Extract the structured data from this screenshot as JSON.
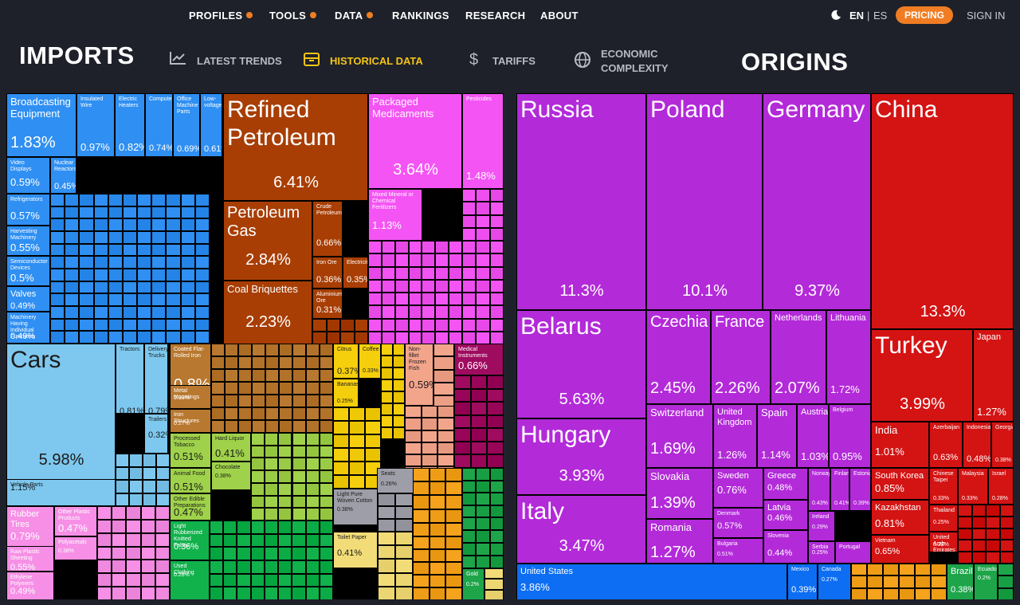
{
  "nav": {
    "items": [
      {
        "label": "PROFILES",
        "dot": true
      },
      {
        "label": "TOOLS",
        "dot": true
      },
      {
        "label": "DATA",
        "dot": true
      },
      {
        "label": "RANKINGS",
        "dot": false
      },
      {
        "label": "RESEARCH",
        "dot": false
      },
      {
        "label": "ABOUT",
        "dot": false
      }
    ],
    "lang_en": "EN",
    "lang_sep": "|",
    "lang_es": "ES",
    "pricing": "PRICING",
    "signin": "SIGN IN"
  },
  "header": {
    "left_title": "IMPORTS",
    "right_title": "ORIGINS",
    "tabs": [
      {
        "label": "LATEST TRENDS",
        "icon": "trend-chart-icon",
        "active": false
      },
      {
        "label": "HISTORICAL DATA",
        "icon": "historical-box-icon",
        "active": true
      },
      {
        "label": "TARIFFS",
        "icon": "dollar-icon",
        "active": false
      },
      {
        "label_line1": "ECONOMIC",
        "label_line2": "COMPLEXITY",
        "icon": "globe-icon",
        "active": false
      }
    ]
  },
  "colors": {
    "machinery": "#2f8ff2",
    "transport": "#7ec8ef",
    "minerals": "#a83e04",
    "chemicals": "#f454f4",
    "metals": "#b8782f",
    "food": "#9fd24a",
    "plastics": "#f68fe5",
    "textiles": "#11b14c",
    "animal": "#f3a58c",
    "vegetable": "#f5cf0c",
    "instruments": "#9e0b5f",
    "stone": "#9e9ea8",
    "paper": "#f1dc78",
    "europe": "#b32ad9",
    "asia": "#d41313",
    "namerica": "#0d6ef3",
    "samerica": "#1ea54a",
    "misc": "#f5a21c"
  },
  "imports": [
    {
      "name": "Broadcasting Equipment",
      "value": "1.83%"
    },
    {
      "name": "Insulated Wire",
      "value": "0.97%"
    },
    {
      "name": "Electric Heaters",
      "value": "0.82%"
    },
    {
      "name": "Computers",
      "value": "0.74%"
    },
    {
      "name": "Office Machine Parts",
      "value": "0.69%"
    },
    {
      "name": "Low-voltage",
      "value": "0.61%"
    },
    {
      "name": "Video Displays",
      "value": "0.59%"
    },
    {
      "name": "Nuclear Reactors",
      "value": "0.45%"
    },
    {
      "name": "Refrigerators",
      "value": "0.57%"
    },
    {
      "name": "Harvesting Machinery",
      "value": "0.55%"
    },
    {
      "name": "Semiconductor Devices",
      "value": "0.5%"
    },
    {
      "name": "Valves",
      "value": "0.49%"
    },
    {
      "name": "Machinery Having Individual Functions",
      "value": "0.49%"
    },
    {
      "name": "Refined Petroleum",
      "value": "6.41%"
    },
    {
      "name": "Petroleum Gas",
      "value": "2.84%"
    },
    {
      "name": "Crude Petroleum",
      "value": "0.66%"
    },
    {
      "name": "Iron Ore",
      "value": "0.36%"
    },
    {
      "name": "Electricity",
      "value": "0.35%"
    },
    {
      "name": "Coal Briquettes",
      "value": "2.23%"
    },
    {
      "name": "Aluminium Ore",
      "value": "0.31%"
    },
    {
      "name": "Packaged Medicaments",
      "value": "3.64%"
    },
    {
      "name": "Pesticides",
      "value": "1.48%"
    },
    {
      "name": "Mixed Mineral or Chemical Fertilizers",
      "value": "1.13%"
    },
    {
      "name": "Cars",
      "value": "5.98%"
    },
    {
      "name": "Vehicle Parts",
      "value": "1.15%"
    },
    {
      "name": "Tractors",
      "value": "0.81%"
    },
    {
      "name": "Delivery Trucks",
      "value": "0.79%"
    },
    {
      "name": "Trailers",
      "value": "0.32%"
    },
    {
      "name": "Coated Flat-Rolled Iron",
      "value": "0.8%"
    },
    {
      "name": "Metal Mountings",
      "value": "0.33%"
    },
    {
      "name": "Iron Structures",
      "value": "0.27%"
    },
    {
      "name": "Citrus",
      "value": "0.37%"
    },
    {
      "name": "Coffee",
      "value": "0.33%"
    },
    {
      "name": "Bananas",
      "value": "0.25%"
    },
    {
      "name": "Non-fillet Frozen Fish",
      "value": "0.59%"
    },
    {
      "name": "Medical Instruments",
      "value": "0.66%"
    },
    {
      "name": "Processed Tobacco",
      "value": "0.51%"
    },
    {
      "name": "Hard Liquor",
      "value": "0.41%"
    },
    {
      "name": "Animal Food",
      "value": "0.51%"
    },
    {
      "name": "Chocolate",
      "value": "0.38%"
    },
    {
      "name": "Other Edible Preparations",
      "value": "0.47%"
    },
    {
      "name": "Rubber Tires",
      "value": "0.79%"
    },
    {
      "name": "Other Plastic Products",
      "value": "0.47%"
    },
    {
      "name": "Raw Plastic Sheeting",
      "value": "0.55%"
    },
    {
      "name": "Polyacetals",
      "value": "0.38%"
    },
    {
      "name": "Ethylene Polymers",
      "value": "0.49%"
    },
    {
      "name": "Light Rubberized Knitted Fabric",
      "value": "0.36%"
    },
    {
      "name": "Used Clothing",
      "value": "0.28%"
    },
    {
      "name": "Seats",
      "value": "0.26%"
    },
    {
      "name": "Toilet Paper",
      "value": "0.41%"
    },
    {
      "name": "Light Pure Woven Cotton",
      "value": "0.38%"
    },
    {
      "name": "Gold",
      "value": "0.2%"
    }
  ],
  "origins": [
    {
      "name": "Russia",
      "value": "11.3%"
    },
    {
      "name": "Poland",
      "value": "10.1%"
    },
    {
      "name": "Germany",
      "value": "9.37%"
    },
    {
      "name": "China",
      "value": "13.3%"
    },
    {
      "name": "Belarus",
      "value": "5.63%"
    },
    {
      "name": "Hungary",
      "value": "3.93%"
    },
    {
      "name": "Italy",
      "value": "3.47%"
    },
    {
      "name": "Czechia",
      "value": "2.45%"
    },
    {
      "name": "France",
      "value": "2.26%"
    },
    {
      "name": "Netherlands",
      "value": "2.07%"
    },
    {
      "name": "Lithuania",
      "value": "1.72%"
    },
    {
      "name": "Turkey",
      "value": "3.99%"
    },
    {
      "name": "Japan",
      "value": "1.27%"
    },
    {
      "name": "Switzerland",
      "value": "1.69%"
    },
    {
      "name": "United Kingdom",
      "value": "1.26%"
    },
    {
      "name": "Spain",
      "value": "1.14%"
    },
    {
      "name": "Austria",
      "value": "1.03%"
    },
    {
      "name": "Belgium",
      "value": "0.95%"
    },
    {
      "name": "India",
      "value": "1.01%"
    },
    {
      "name": "Azerbaijan",
      "value": "0.63%"
    },
    {
      "name": "Indonesia",
      "value": "0.48%"
    },
    {
      "name": "Georgia",
      "value": "0.38%"
    },
    {
      "name": "Slovakia",
      "value": "1.39%"
    },
    {
      "name": "Sweden",
      "value": "0.76%"
    },
    {
      "name": "Greece",
      "value": "0.48%"
    },
    {
      "name": "Denmark",
      "value": "0.57%"
    },
    {
      "name": "Latvia",
      "value": "0.46%"
    },
    {
      "name": "Romania",
      "value": "1.27%"
    },
    {
      "name": "Bulgaria",
      "value": "0.51%"
    },
    {
      "name": "Slovenia",
      "value": "0.44%"
    },
    {
      "name": "Norway",
      "value": "0.43%"
    },
    {
      "name": "Finland",
      "value": "0.41%"
    },
    {
      "name": "Estonia",
      "value": "0.39%"
    },
    {
      "name": "Ireland",
      "value": "0.29%"
    },
    {
      "name": "Serbia",
      "value": "0.25%"
    },
    {
      "name": "Portugal",
      "value": ""
    },
    {
      "name": "South Korea",
      "value": "0.85%"
    },
    {
      "name": "Chinese Taipei",
      "value": "0.33%"
    },
    {
      "name": "Malaysia",
      "value": "0.33%"
    },
    {
      "name": "Israel",
      "value": "0.28%"
    },
    {
      "name": "Kazakhstan",
      "value": "0.81%"
    },
    {
      "name": "Thailand",
      "value": "0.25%"
    },
    {
      "name": "Vietnam",
      "value": "0.65%"
    },
    {
      "name": "United Arab Emirates",
      "value": "0.22%"
    },
    {
      "name": "United States",
      "value": "3.86%"
    },
    {
      "name": "Mexico",
      "value": "0.39%"
    },
    {
      "name": "Canada",
      "value": "0.27%"
    },
    {
      "name": "Brazil",
      "value": "0.38%"
    },
    {
      "name": "Ecuador",
      "value": "0.2%"
    }
  ]
}
